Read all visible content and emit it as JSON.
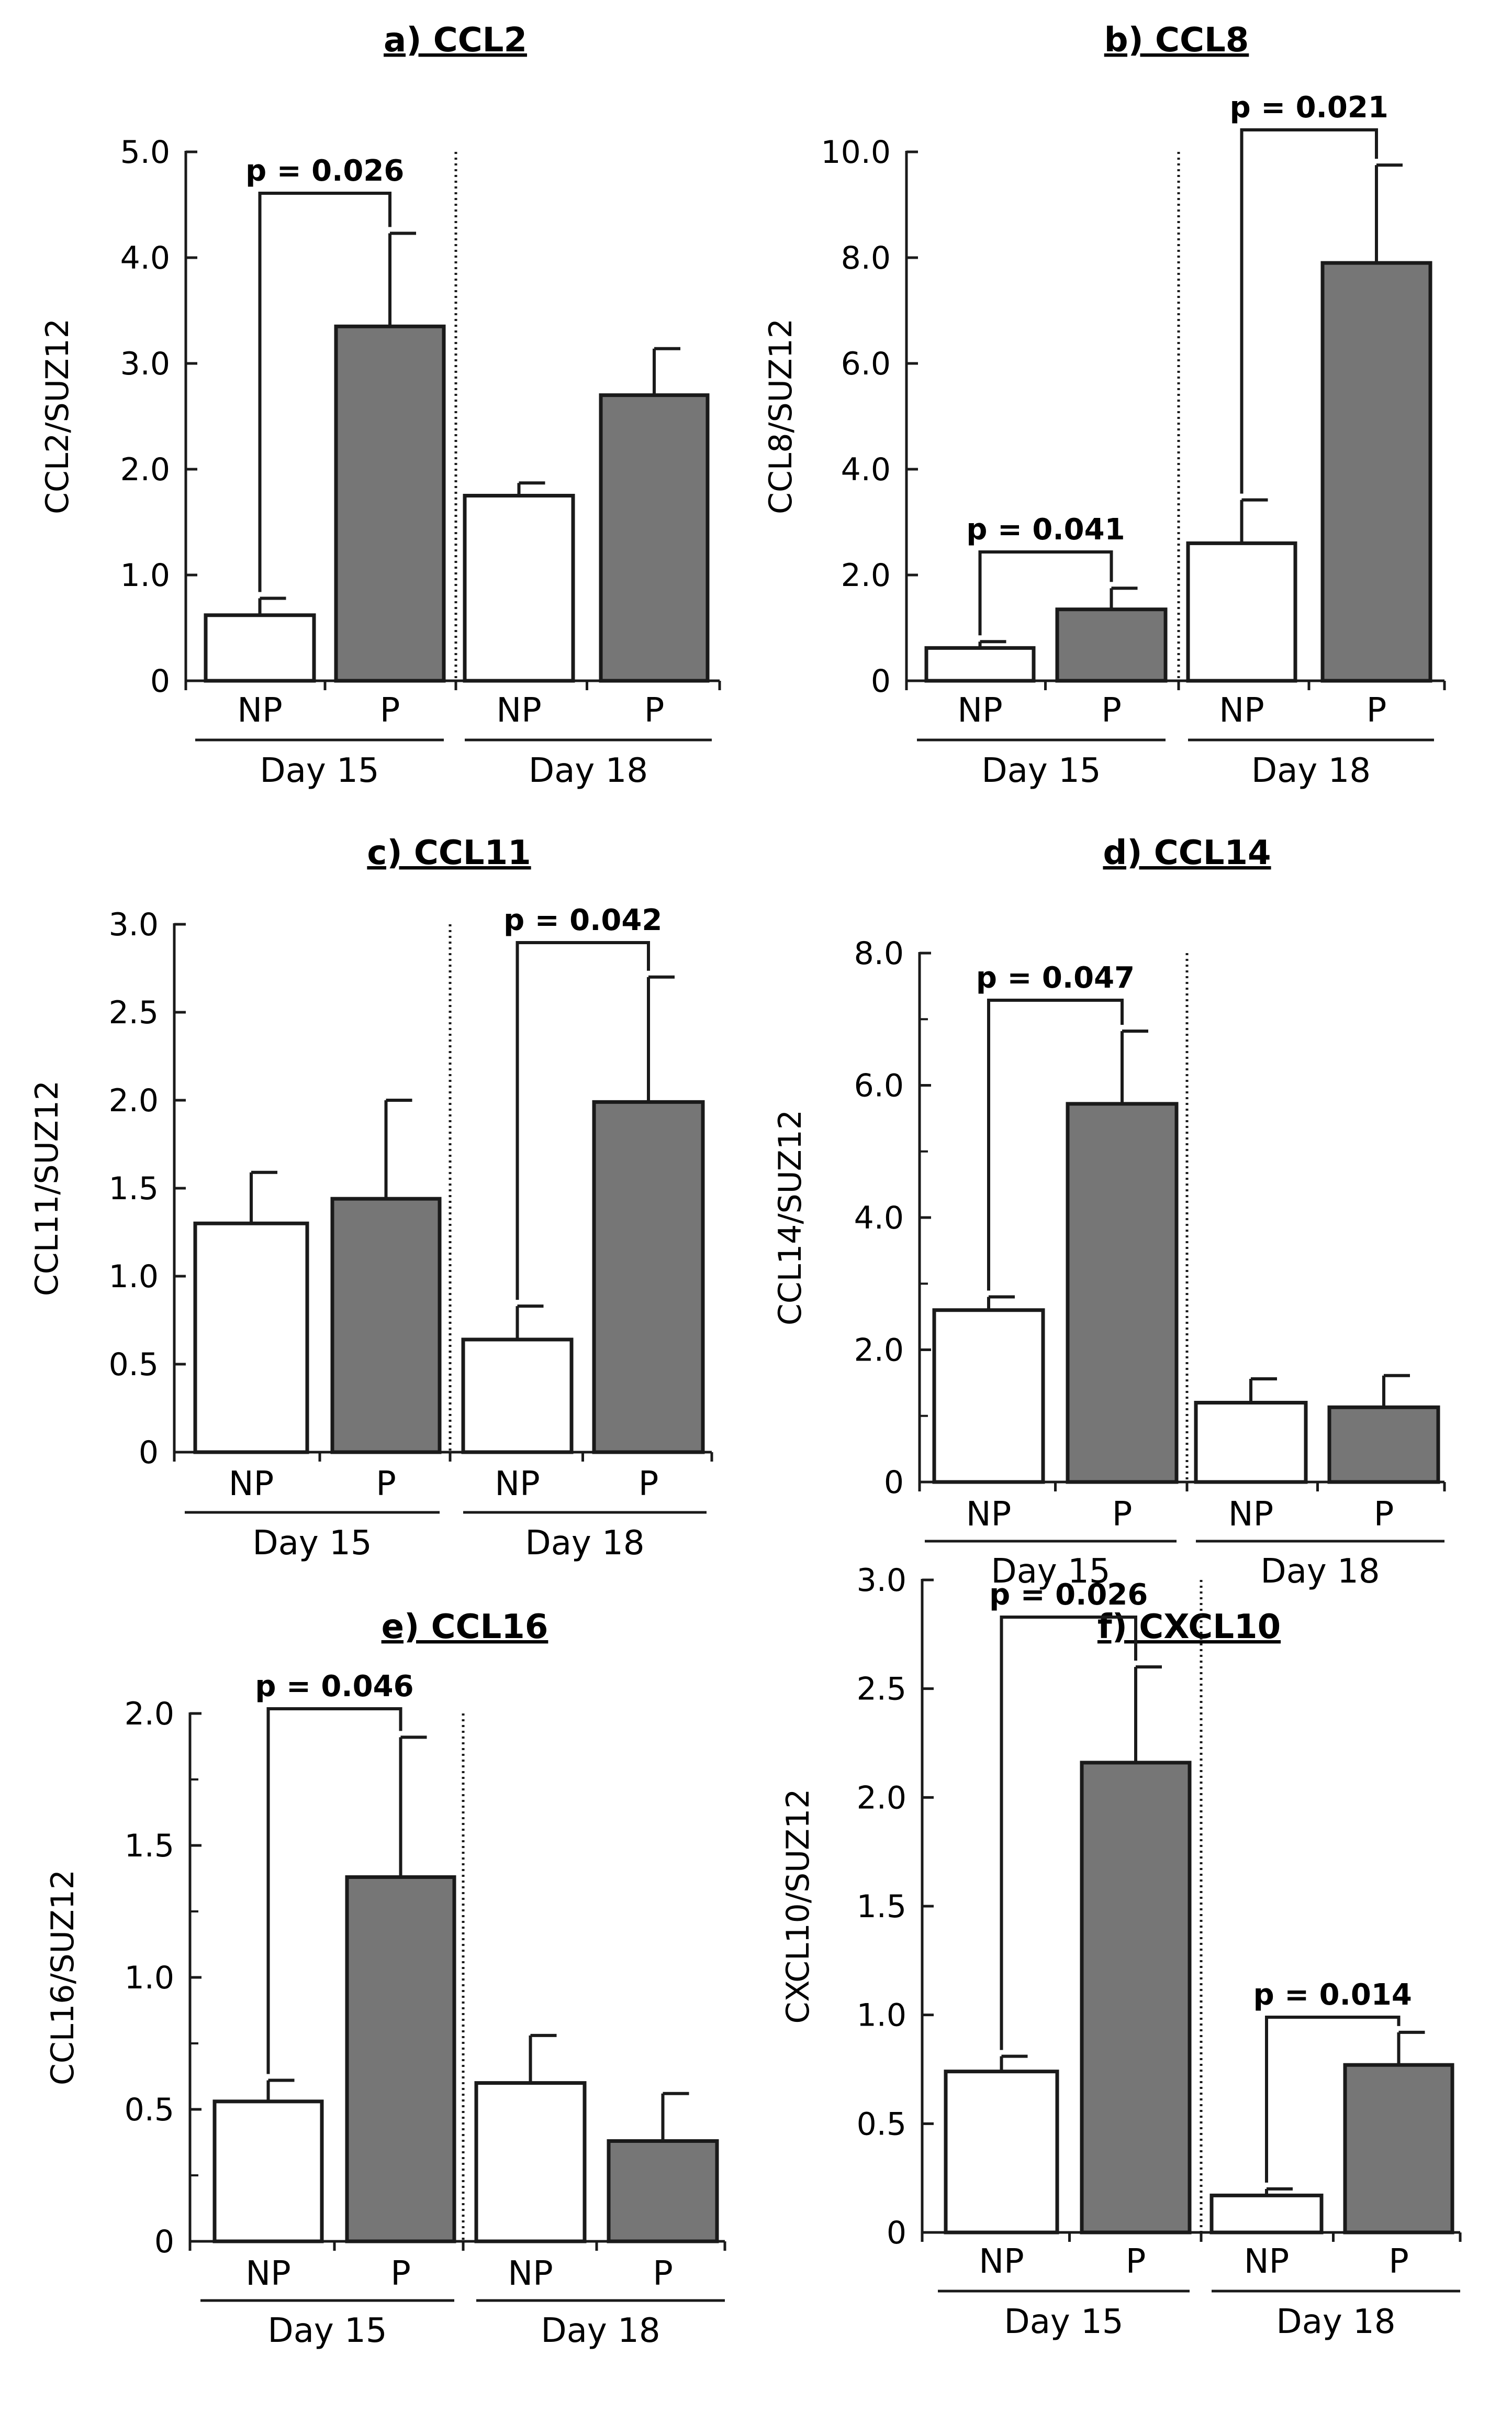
{
  "chart_data": [
    {
      "type": "bar",
      "title": "a) CCL2",
      "ylabel": "CCL2/SUZ12",
      "ylim": [
        0,
        5.0
      ],
      "yticks": [
        0,
        1.0,
        2.0,
        3.0,
        4.0,
        5.0
      ],
      "ytick_labels": [
        "0",
        "1.0",
        "2.0",
        "3.0",
        "4.0",
        "5.0"
      ],
      "groups": [
        "Day 15",
        "Day 18"
      ],
      "categories": [
        "NP",
        "P",
        "NP",
        "P"
      ],
      "values": [
        0.62,
        3.35,
        1.75,
        2.7
      ],
      "errors": [
        0.16,
        0.88,
        0.12,
        0.44
      ],
      "significance": [
        {
          "from": 0,
          "to": 1,
          "p": "p = 0.026"
        }
      ]
    },
    {
      "type": "bar",
      "title": "b) CCL8",
      "ylabel": "CCL8/SUZ12",
      "ylim": [
        0,
        10.0
      ],
      "yticks": [
        0,
        2.0,
        4.0,
        6.0,
        8.0,
        10.0
      ],
      "ytick_labels": [
        "0",
        "2.0",
        "4.0",
        "6.0",
        "8.0",
        "10.0"
      ],
      "groups": [
        "Day 15",
        "Day 18"
      ],
      "categories": [
        "NP",
        "P",
        "NP",
        "P"
      ],
      "values": [
        0.62,
        1.35,
        2.6,
        7.9
      ],
      "errors": [
        0.12,
        0.4,
        0.82,
        1.85
      ],
      "significance": [
        {
          "from": 0,
          "to": 1,
          "p": "p = 0.041"
        },
        {
          "from": 2,
          "to": 3,
          "p": "p = 0.021"
        }
      ]
    },
    {
      "type": "bar",
      "title": "c) CCL11",
      "ylabel": "CCL11/SUZ12",
      "ylim": [
        0,
        3.0
      ],
      "yticks": [
        0,
        0.5,
        1.0,
        1.5,
        2.0,
        2.5,
        3.0
      ],
      "ytick_labels": [
        "0",
        "0.5",
        "1.0",
        "1.5",
        "2.0",
        "2.5",
        "3.0"
      ],
      "groups": [
        "Day 15",
        "Day 18"
      ],
      "categories": [
        "NP",
        "P",
        "NP",
        "P"
      ],
      "values": [
        1.3,
        1.44,
        0.64,
        1.99
      ],
      "errors": [
        0.29,
        0.56,
        0.19,
        0.71
      ],
      "significance": [
        {
          "from": 2,
          "to": 3,
          "p": "p = 0.042"
        }
      ]
    },
    {
      "type": "bar",
      "title": "d) CCL14",
      "ylabel": "CCL14/SUZ12",
      "ylim": [
        0,
        8.0
      ],
      "yticks": [
        0,
        2.0,
        4.0,
        6.0,
        8.0
      ],
      "ytick_labels": [
        "0",
        "2.0",
        "4.0",
        "6.0",
        "8.0"
      ],
      "minor_ticks": [
        1.0,
        3.0,
        5.0,
        7.0
      ],
      "groups": [
        "Day 15",
        "Day 18"
      ],
      "categories": [
        "NP",
        "P",
        "NP",
        "P"
      ],
      "values": [
        2.6,
        5.72,
        1.2,
        1.13
      ],
      "errors": [
        0.2,
        1.1,
        0.36,
        0.48
      ],
      "significance": [
        {
          "from": 0,
          "to": 1,
          "p": "p = 0.047"
        }
      ]
    },
    {
      "type": "bar",
      "title": "e) CCL16",
      "ylabel": "CCL16/SUZ12",
      "ylim": [
        0,
        2.0
      ],
      "yticks": [
        0,
        0.5,
        1.0,
        1.5,
        2.0
      ],
      "ytick_labels": [
        "0",
        "0.5",
        "1.0",
        "1.5",
        "2.0"
      ],
      "minor_ticks": [
        0.25,
        0.75,
        1.25,
        1.75
      ],
      "groups": [
        "Day 15",
        "Day 18"
      ],
      "categories": [
        "NP",
        "P",
        "NP",
        "P"
      ],
      "values": [
        0.53,
        1.38,
        0.6,
        0.38
      ],
      "errors": [
        0.08,
        0.53,
        0.18,
        0.18
      ],
      "significance": [
        {
          "from": 0,
          "to": 1,
          "p": "p = 0.046"
        }
      ]
    },
    {
      "type": "bar",
      "title": "f) CXCL10",
      "ylabel": "CXCL10/SUZ12",
      "ylim": [
        0,
        3.0
      ],
      "yticks": [
        0,
        0.5,
        1.0,
        1.5,
        2.0,
        2.5,
        3.0
      ],
      "ytick_labels": [
        "0",
        "0.5",
        "1.0",
        "1.5",
        "2.0",
        "2.5",
        "3.0"
      ],
      "groups": [
        "Day 15",
        "Day 18"
      ],
      "categories": [
        "NP",
        "P",
        "NP",
        "P"
      ],
      "values": [
        0.74,
        2.16,
        0.17,
        0.77
      ],
      "errors": [
        0.07,
        0.44,
        0.03,
        0.15
      ],
      "significance": [
        {
          "from": 0,
          "to": 1,
          "p": "p = 0.026"
        },
        {
          "from": 2,
          "to": 3,
          "p": "p = 0.014"
        }
      ]
    }
  ],
  "colors": {
    "np_fill": "#ffffff",
    "p_fill": "#767676",
    "stroke": "#1a1a1a"
  }
}
